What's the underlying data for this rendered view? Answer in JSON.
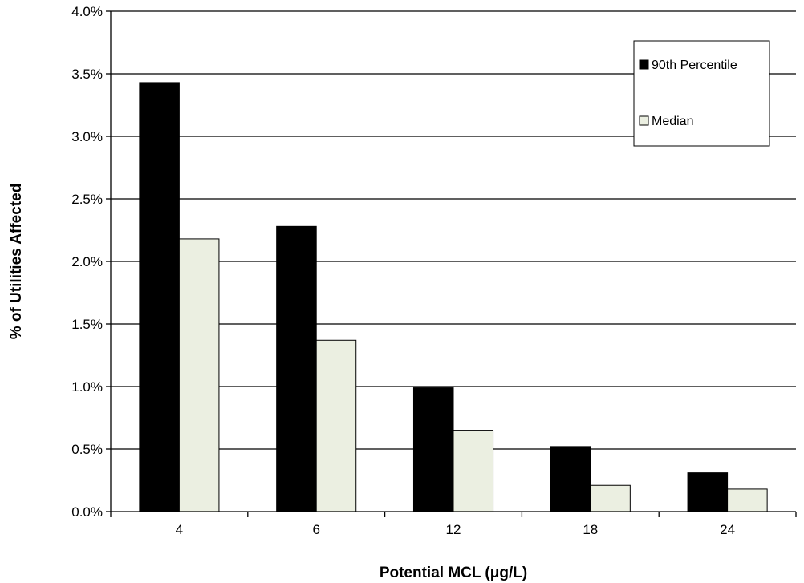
{
  "chart_data": {
    "type": "bar",
    "categories": [
      "4",
      "6",
      "12",
      "18",
      "24"
    ],
    "series": [
      {
        "name": "90th Percentile",
        "values": [
          3.43,
          2.28,
          0.99,
          0.52,
          0.31
        ],
        "color": "#000000"
      },
      {
        "name": "Median",
        "values": [
          2.18,
          1.37,
          0.65,
          0.21,
          0.18
        ],
        "color": "#EBEFE1"
      }
    ],
    "yticks": [
      "0.0%",
      "0.5%",
      "1.0%",
      "1.5%",
      "2.0%",
      "2.5%",
      "3.0%",
      "3.5%",
      "4.0%"
    ],
    "ylim": [
      0,
      4
    ],
    "xlabel": "Potential MCL (μg/L)",
    "ylabel": "% of Utilities Affected",
    "grid": true,
    "legend_position": "top-right"
  }
}
